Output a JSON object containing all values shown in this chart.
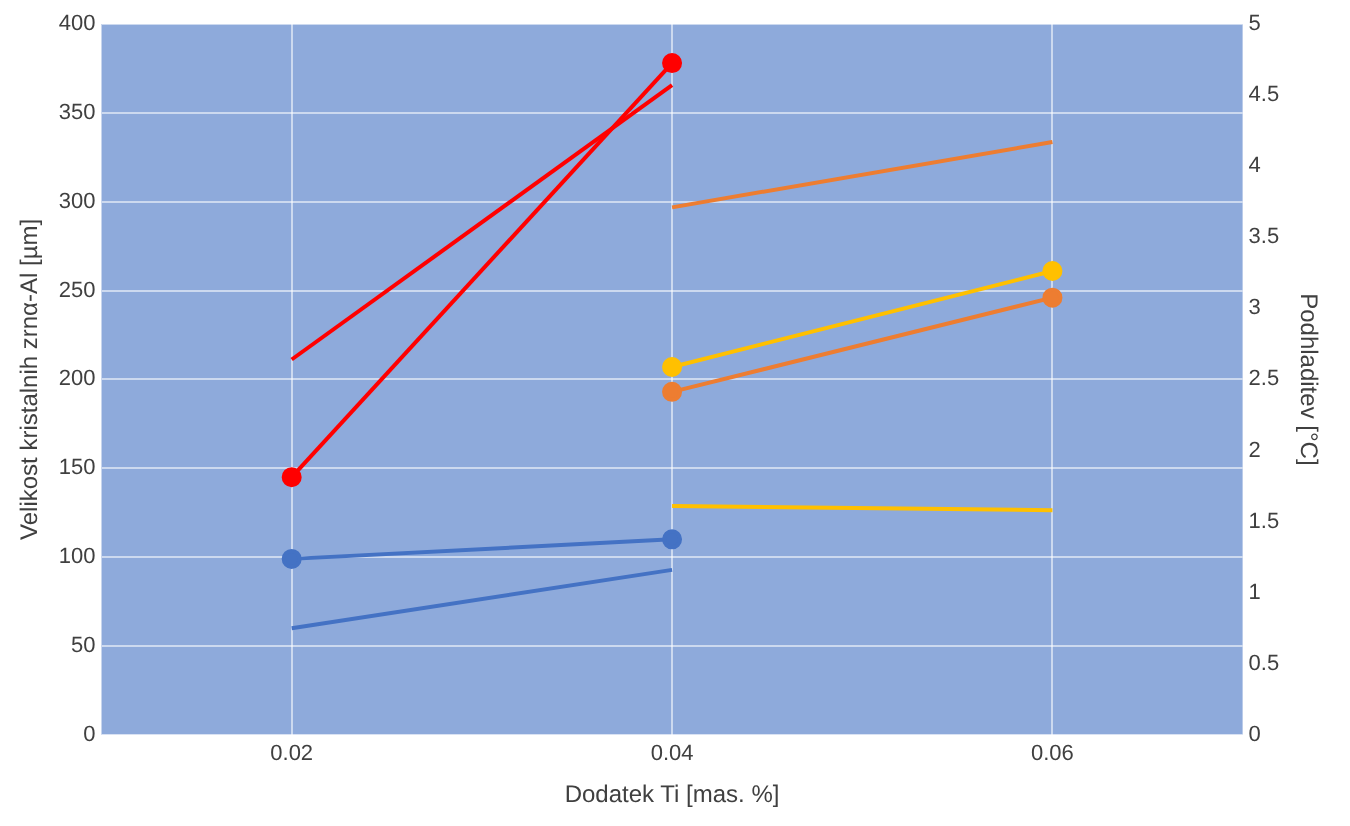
{
  "chart_data": {
    "type": "line",
    "xlabel": "Dodatek Ti [mas. %]",
    "ylabel": "Velikost kristalnih zrnα-Al [µm]",
    "y2label": "Podhladitev [°C]",
    "xlim": [
      0.01,
      0.07
    ],
    "xticks": [
      0.02,
      0.04,
      0.06
    ],
    "ylim": [
      0,
      400
    ],
    "yticks": [
      0,
      50,
      100,
      150,
      200,
      250,
      300,
      350,
      400
    ],
    "y2lim": [
      0,
      5
    ],
    "y2ticks": [
      0,
      0.5,
      1,
      1.5,
      2,
      2.5,
      3,
      3.5,
      4,
      4.5,
      5
    ],
    "grid": true,
    "legend": false,
    "line_style": "solid",
    "series": [
      {
        "color": "#ff0000",
        "x": [
          0.02,
          0.04
        ],
        "values": [
          145,
          378
        ],
        "marker": "circle"
      },
      {
        "color": "#4472c4",
        "x": [
          0.02,
          0.04
        ],
        "values": [
          99,
          110
        ],
        "marker": "circle"
      },
      {
        "color": "#ffc000",
        "x": [
          0.04,
          0.06
        ],
        "values": [
          207,
          261
        ],
        "marker": "circle"
      },
      {
        "color": "#ed7d31",
        "x": [
          0.04,
          0.06
        ],
        "values": [
          193,
          246
        ],
        "marker": "circle"
      },
      {
        "color": "#ff0000",
        "x": [
          0.02,
          0.04
        ],
        "values": [
          2.64,
          4.57
        ],
        "marker": "none",
        "axis": "y2"
      },
      {
        "color": "#4472c4",
        "x": [
          0.02,
          0.04
        ],
        "values": [
          0.75,
          1.16
        ],
        "marker": "none",
        "axis": "y2"
      },
      {
        "color": "#ed7d31",
        "x": [
          0.04,
          0.06
        ],
        "values": [
          3.71,
          4.17
        ],
        "marker": "none",
        "axis": "y2"
      },
      {
        "color": "#ffc000",
        "x": [
          0.04,
          0.06
        ],
        "values": [
          1.61,
          1.58
        ],
        "marker": "none",
        "axis": "y2"
      }
    ]
  }
}
